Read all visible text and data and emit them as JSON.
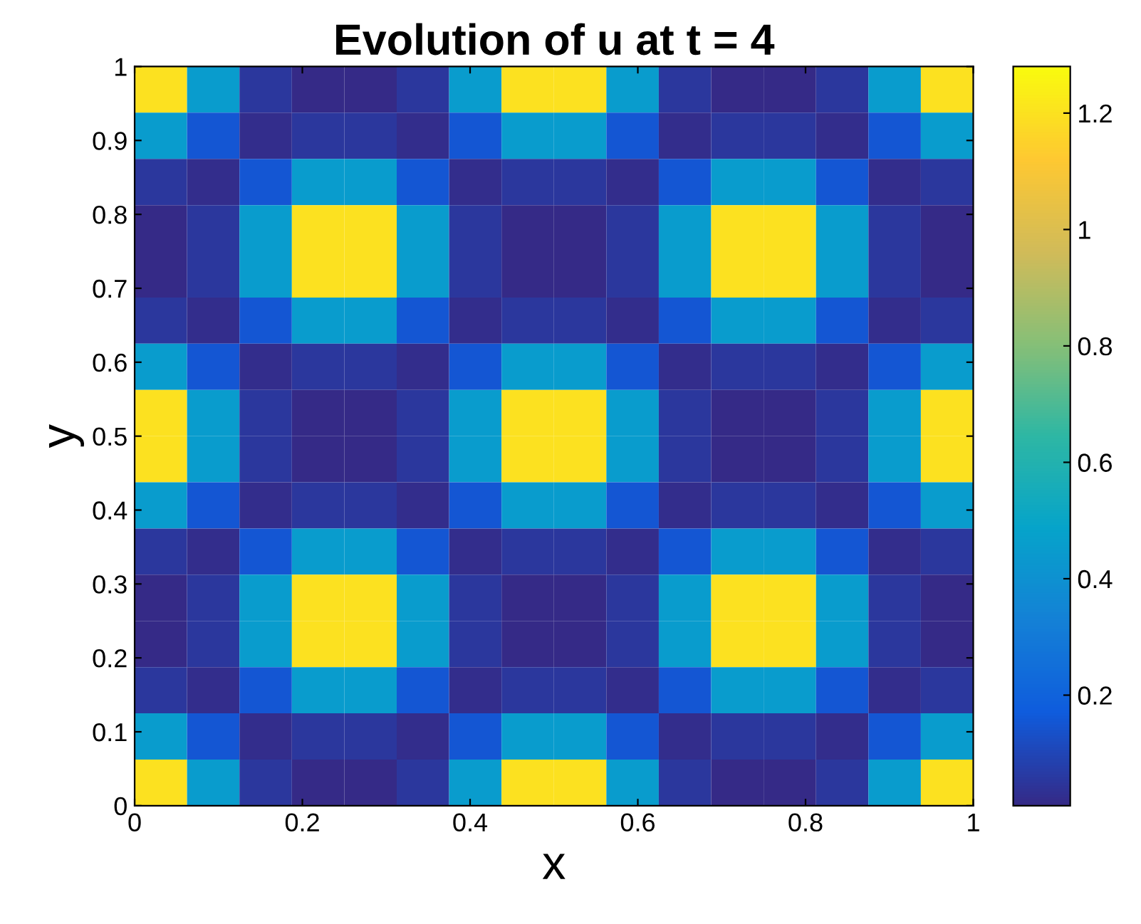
{
  "chart_data": {
    "type": "heatmap",
    "title": "Evolution of u at t = 4",
    "xlabel": "x",
    "ylabel": "y",
    "x": [
      0.03125,
      0.09375,
      0.15625,
      0.21875,
      0.28125,
      0.34375,
      0.40625,
      0.46875,
      0.53125,
      0.59375,
      0.65625,
      0.71875,
      0.78125,
      0.84375,
      0.90625,
      0.96875
    ],
    "y": [
      0.96875,
      0.90625,
      0.84375,
      0.78125,
      0.71875,
      0.65625,
      0.59375,
      0.53125,
      0.46875,
      0.40625,
      0.34375,
      0.28125,
      0.21875,
      0.15625,
      0.09375,
      0.03125
    ],
    "xlim": [
      0,
      1
    ],
    "ylim": [
      0,
      1
    ],
    "xticks": [
      0,
      0.2,
      0.4,
      0.6,
      0.8,
      1
    ],
    "yticks": [
      0,
      0.1,
      0.2,
      0.3,
      0.4,
      0.5,
      0.6,
      0.7,
      0.8,
      0.9,
      1
    ],
    "clim": [
      0.01,
      1.28
    ],
    "cticks": [
      0.2,
      0.4,
      0.6,
      0.8,
      1,
      1.2
    ],
    "cells": [
      [
        1.2,
        0.45,
        0.05,
        0.01,
        0.01,
        0.05,
        0.45,
        1.2,
        1.2,
        0.45,
        0.05,
        0.01,
        0.01,
        0.05,
        0.45,
        1.2
      ],
      [
        0.45,
        0.15,
        0.02,
        0.05,
        0.05,
        0.02,
        0.15,
        0.45,
        0.45,
        0.15,
        0.02,
        0.05,
        0.05,
        0.02,
        0.15,
        0.45
      ],
      [
        0.05,
        0.02,
        0.15,
        0.45,
        0.45,
        0.15,
        0.02,
        0.05,
        0.05,
        0.02,
        0.15,
        0.45,
        0.45,
        0.15,
        0.02,
        0.05
      ],
      [
        0.01,
        0.05,
        0.45,
        1.2,
        1.2,
        0.45,
        0.05,
        0.01,
        0.01,
        0.05,
        0.45,
        1.2,
        1.2,
        0.45,
        0.05,
        0.01
      ],
      [
        0.01,
        0.05,
        0.45,
        1.2,
        1.2,
        0.45,
        0.05,
        0.01,
        0.01,
        0.05,
        0.45,
        1.2,
        1.2,
        0.45,
        0.05,
        0.01
      ],
      [
        0.05,
        0.02,
        0.15,
        0.45,
        0.45,
        0.15,
        0.02,
        0.05,
        0.05,
        0.02,
        0.15,
        0.45,
        0.45,
        0.15,
        0.02,
        0.05
      ],
      [
        0.45,
        0.15,
        0.02,
        0.05,
        0.05,
        0.02,
        0.15,
        0.45,
        0.45,
        0.15,
        0.02,
        0.05,
        0.05,
        0.02,
        0.15,
        0.45
      ],
      [
        1.2,
        0.45,
        0.05,
        0.01,
        0.01,
        0.05,
        0.45,
        1.2,
        1.2,
        0.45,
        0.05,
        0.01,
        0.01,
        0.05,
        0.45,
        1.2
      ],
      [
        1.2,
        0.45,
        0.05,
        0.01,
        0.01,
        0.05,
        0.45,
        1.2,
        1.2,
        0.45,
        0.05,
        0.01,
        0.01,
        0.05,
        0.45,
        1.2
      ],
      [
        0.45,
        0.15,
        0.02,
        0.05,
        0.05,
        0.02,
        0.15,
        0.45,
        0.45,
        0.15,
        0.02,
        0.05,
        0.05,
        0.02,
        0.15,
        0.45
      ],
      [
        0.05,
        0.02,
        0.15,
        0.45,
        0.45,
        0.15,
        0.02,
        0.05,
        0.05,
        0.02,
        0.15,
        0.45,
        0.45,
        0.15,
        0.02,
        0.05
      ],
      [
        0.01,
        0.05,
        0.45,
        1.2,
        1.2,
        0.45,
        0.05,
        0.01,
        0.01,
        0.05,
        0.45,
        1.2,
        1.2,
        0.45,
        0.05,
        0.01
      ],
      [
        0.01,
        0.05,
        0.45,
        1.2,
        1.2,
        0.45,
        0.05,
        0.01,
        0.01,
        0.05,
        0.45,
        1.2,
        1.2,
        0.45,
        0.05,
        0.01
      ],
      [
        0.05,
        0.02,
        0.15,
        0.45,
        0.45,
        0.15,
        0.02,
        0.05,
        0.05,
        0.02,
        0.15,
        0.45,
        0.45,
        0.15,
        0.02,
        0.05
      ],
      [
        0.45,
        0.15,
        0.02,
        0.05,
        0.05,
        0.02,
        0.15,
        0.45,
        0.45,
        0.15,
        0.02,
        0.05,
        0.05,
        0.02,
        0.15,
        0.45
      ],
      [
        1.2,
        0.45,
        0.05,
        0.01,
        0.01,
        0.05,
        0.45,
        1.2,
        1.2,
        0.45,
        0.05,
        0.01,
        0.01,
        0.05,
        0.45,
        1.2
      ]
    ]
  }
}
